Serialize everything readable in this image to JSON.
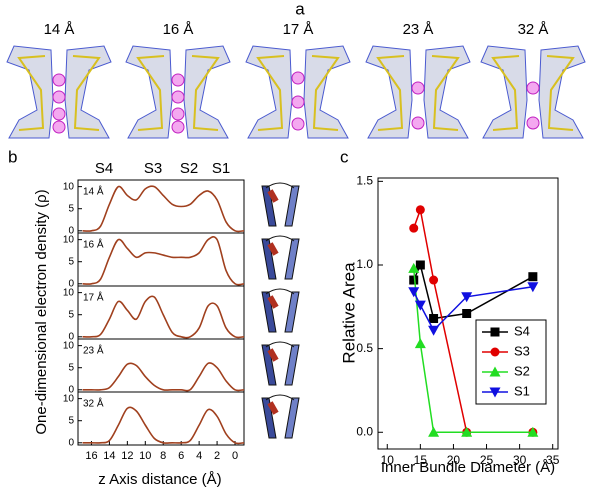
{
  "panel_a": {
    "label": "a",
    "titles": [
      "14 Å",
      "16 Å",
      "17 Å",
      "23 Å",
      "32 Å"
    ]
  },
  "panel_b": {
    "label": "b",
    "ylabel": "One-dimensional electron density (ρ)",
    "xlabel": "z Axis distance (Å)",
    "sites": [
      "S4",
      "S3",
      "S2",
      "S1"
    ]
  },
  "panel_c": {
    "label": "c"
  },
  "chart_data": [
    {
      "type": "line",
      "label": "14 Å",
      "color": "#a0401e",
      "x": [
        17,
        16,
        15,
        14,
        13,
        12,
        11,
        10,
        9,
        8,
        7,
        6,
        5,
        4,
        3,
        2,
        1,
        0,
        -1
      ],
      "values": [
        0,
        0,
        1,
        6,
        10,
        8,
        7,
        9.5,
        10,
        8,
        6,
        5.5,
        6,
        8,
        9,
        7,
        2,
        0,
        0
      ],
      "xlim": [
        17.5,
        -1
      ],
      "ylim": [
        -0.5,
        11.5
      ],
      "yticks": [
        0,
        5,
        10
      ]
    },
    {
      "type": "line",
      "label": "16 Å",
      "color": "#a0401e",
      "x": [
        17,
        16,
        15,
        14,
        13,
        12,
        11,
        10,
        9,
        8,
        7,
        6,
        5,
        4,
        3,
        2,
        1,
        0,
        -1
      ],
      "values": [
        0,
        0,
        1,
        6,
        10,
        8,
        6,
        7,
        7,
        6.5,
        6,
        6,
        6,
        7,
        10,
        10,
        3,
        0,
        0
      ],
      "xlim": [
        17.5,
        -1
      ],
      "ylim": [
        -0.5,
        11.5
      ],
      "yticks": [
        0,
        5,
        10
      ]
    },
    {
      "type": "line",
      "label": "17 Å",
      "color": "#a0401e",
      "x": [
        17,
        16,
        15,
        14,
        13,
        12,
        11,
        10,
        9,
        8,
        7,
        6,
        5,
        4,
        3,
        2,
        1,
        0,
        -1
      ],
      "values": [
        0,
        0,
        0.5,
        4,
        8,
        6,
        4,
        8,
        9,
        5,
        1,
        0,
        0,
        2,
        7,
        7,
        2,
        0,
        0
      ],
      "xlim": [
        17.5,
        -1
      ],
      "ylim": [
        -0.5,
        11.5
      ],
      "yticks": [
        0,
        5,
        10
      ]
    },
    {
      "type": "line",
      "label": "23 Å",
      "color": "#a0401e",
      "x": [
        17,
        16,
        15,
        14,
        13,
        12,
        11,
        10,
        9,
        8,
        7,
        6,
        5,
        4,
        3,
        2,
        1,
        0,
        -1
      ],
      "values": [
        0,
        0,
        0,
        0.5,
        3,
        5.8,
        5.5,
        3,
        1,
        0,
        0,
        0,
        0,
        3,
        6,
        5,
        2,
        0,
        0
      ],
      "xlim": [
        17.5,
        -1
      ],
      "ylim": [
        -0.5,
        11.5
      ],
      "yticks": [
        0,
        5,
        10
      ]
    },
    {
      "type": "line",
      "label": "32 Å",
      "color": "#a0401e",
      "x": [
        17,
        16,
        15,
        14,
        13,
        12,
        11,
        10,
        9,
        8,
        7,
        6,
        5,
        4,
        3,
        2,
        1,
        0,
        -1
      ],
      "values": [
        0,
        0,
        0,
        0.5,
        4,
        7.8,
        7.2,
        4,
        1,
        0,
        0,
        0,
        0.5,
        4,
        7.5,
        6,
        2,
        0,
        0
      ],
      "xlim": [
        17.5,
        -1
      ],
      "ylim": [
        -0.5,
        11.5
      ],
      "yticks": [
        0,
        5,
        10
      ],
      "xticks": [
        16,
        14,
        12,
        10,
        8,
        6,
        4,
        2,
        0
      ]
    },
    {
      "type": "scatter-line",
      "xlabel": "Inner Bundle Diameter (Å)",
      "ylabel": "Relative Area",
      "x": [
        14,
        15,
        17,
        22,
        32
      ],
      "xlim": [
        8.6,
        35.8
      ],
      "xticks": [
        10,
        15,
        20,
        25,
        30,
        35
      ],
      "ylim": [
        -0.1,
        1.52
      ],
      "yticks": [
        {
          "value": 0,
          "label": "0.0"
        },
        {
          "value": 0.5,
          "label": "0.5"
        },
        {
          "value": 1,
          "label": "1.0"
        },
        {
          "value": 1.5,
          "label": "1.5"
        }
      ],
      "series": [
        {
          "name": "S4",
          "color": "#000000",
          "marker": "square",
          "values": [
            0.91,
            1.0,
            0.68,
            0.71,
            0.93
          ]
        },
        {
          "name": "S3",
          "color": "#e00000",
          "marker": "circle",
          "values": [
            1.22,
            1.33,
            0.91,
            0,
            0
          ]
        },
        {
          "name": "S2",
          "color": "#22dd22",
          "marker": "triangle-up",
          "values": [
            0.98,
            0.53,
            0,
            0,
            0
          ]
        },
        {
          "name": "S1",
          "color": "#1010e0",
          "marker": "triangle-down",
          "values": [
            0.84,
            0.76,
            0.61,
            0.81,
            0.87
          ]
        }
      ]
    }
  ]
}
